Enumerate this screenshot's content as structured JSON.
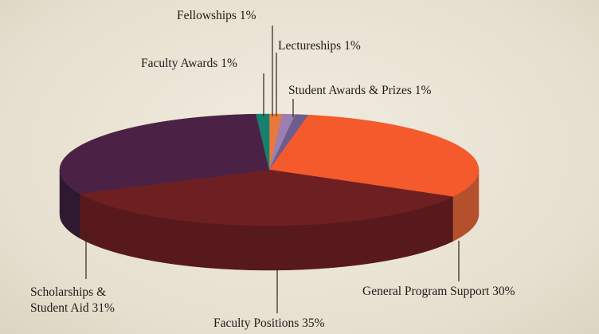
{
  "chart_data": {
    "type": "pie",
    "categories": [
      "Fellowships",
      "Lectureships",
      "Student Awards & Prizes",
      "General Program Support",
      "Faculty Positions",
      "Scholarships & Student Aid",
      "Faculty Awards"
    ],
    "values": [
      1,
      1,
      1,
      30,
      35,
      31,
      1
    ],
    "value_labels": [
      "1%",
      "1%",
      "1%",
      "30%",
      "35%",
      "31%",
      "1%"
    ],
    "colors": [
      "#e8793a",
      "#9a7fb0",
      "#6d5c8e",
      "#f45a2c",
      "#6e1f22",
      "#4b2245",
      "#17806c"
    ],
    "side_colors": [
      "#b8582a",
      "#6d5c80",
      "#4e4066",
      "#b5502c",
      "#57191b",
      "#2e1a30",
      "#0e5a4c"
    ]
  }
}
